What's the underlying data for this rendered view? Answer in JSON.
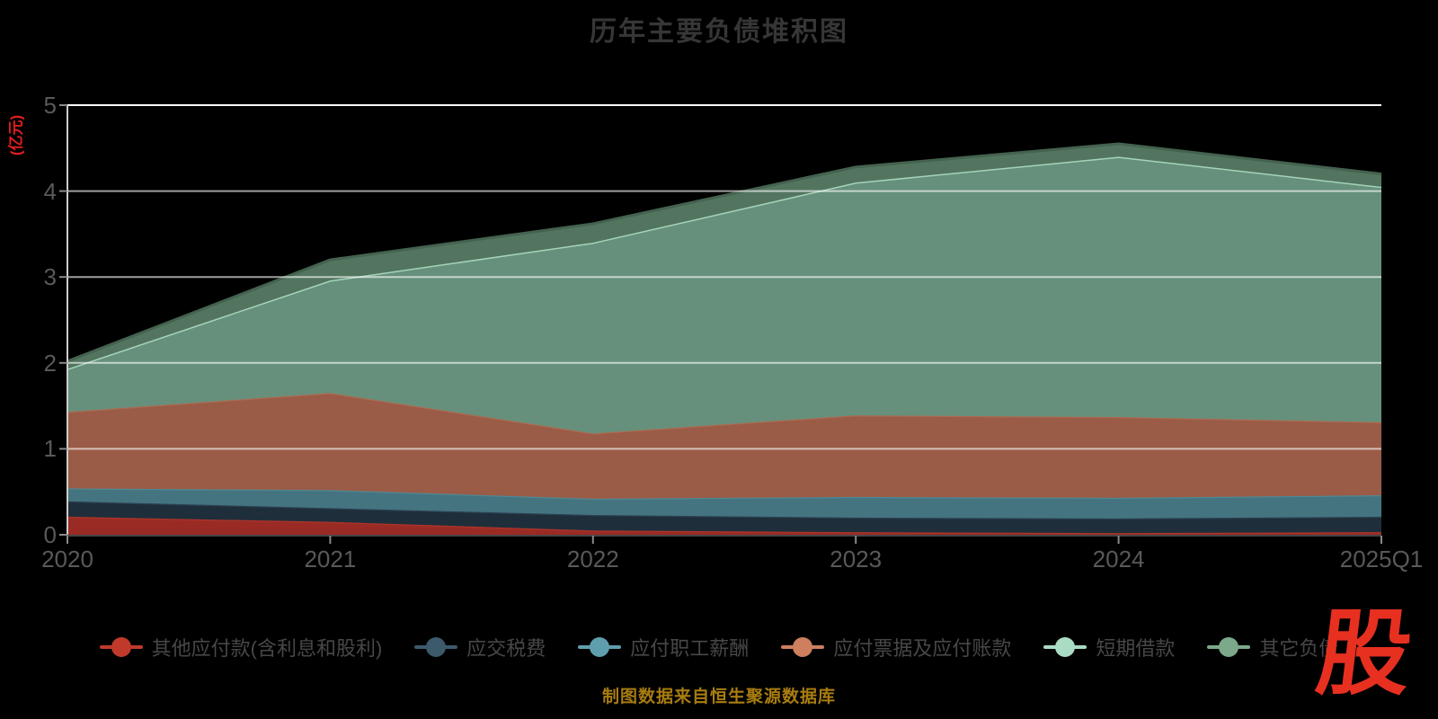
{
  "page": {
    "background": "#000000"
  },
  "chart_data": {
    "type": "area",
    "stacked": true,
    "title": "历年主要负债堆积图",
    "y_unit": "(亿元)",
    "x_labels": [
      "2020",
      "2021",
      "2022",
      "2023",
      "2024",
      "2025Q1"
    ],
    "y_ticks": [
      0,
      1,
      2,
      3,
      4,
      5
    ],
    "ylim": [
      0,
      5
    ],
    "grid": true,
    "legend_position": "bottom",
    "series": [
      {
        "name": "其他应付款(含利息和股利)",
        "values": [
          0.21,
          0.15,
          0.05,
          0.03,
          0.02,
          0.03
        ],
        "fill": "#9a2b24",
        "stroke": "#ad352a",
        "marker": "#c0392b"
      },
      {
        "name": "应交税费",
        "values": [
          0.18,
          0.16,
          0.18,
          0.17,
          0.17,
          0.18
        ],
        "fill": "#1f2e3b",
        "stroke": "#2b4152",
        "marker": "#3c5a6b"
      },
      {
        "name": "应付职工薪酬",
        "values": [
          0.15,
          0.21,
          0.19,
          0.24,
          0.24,
          0.25
        ],
        "fill": "#44747f",
        "stroke": "#4f8893",
        "marker": "#5f9fad"
      },
      {
        "name": "应付票据及应付账款",
        "values": [
          0.89,
          1.13,
          0.76,
          0.95,
          0.94,
          0.85
        ],
        "fill": "#9a5b47",
        "stroke": "#ac6a51",
        "marker": "#cd7f5e"
      },
      {
        "name": "短期借款",
        "values": [
          0.5,
          1.31,
          2.22,
          2.71,
          3.03,
          2.74
        ],
        "fill": "#66907b",
        "stroke": "#a5d3ba",
        "marker": "#a9dcc3"
      },
      {
        "name": "其它负债",
        "values": [
          0.09,
          0.24,
          0.22,
          0.18,
          0.15,
          0.15
        ],
        "fill": "#53755f",
        "stroke": "#44624f",
        "marker": "#7ba98a"
      }
    ],
    "stack_totals": [
      2.02,
      3.2,
      3.62,
      4.28,
      4.55,
      4.2
    ]
  },
  "caption": {
    "text": "制图数据来自恒生聚源数据库",
    "color": "#a87c10"
  },
  "logo": {
    "text": "股",
    "color": "#e73020"
  },
  "axis_style": {
    "grid_color": "#ffffff",
    "axis_line_color": "#cdcdcd",
    "tick_color": "#8a8a8a",
    "label_color": "#595959"
  }
}
